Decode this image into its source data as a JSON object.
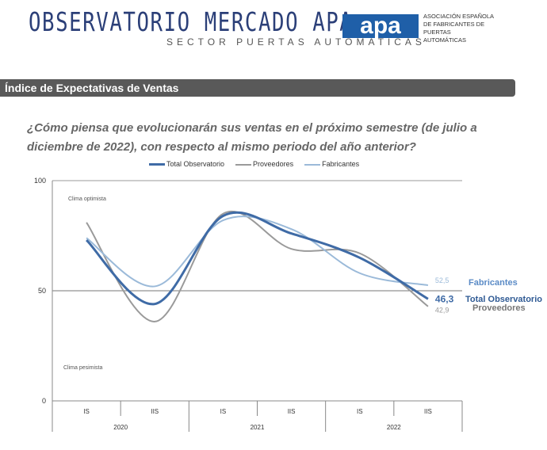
{
  "header": {
    "title": "OBSERVATORIO MERCADO APA",
    "subtitle": "SECTOR PUERTAS AUTOMATICAS",
    "logo_text": "apa",
    "org_name": "ASOCIACIÓN ESPAÑOLA DE FABRICANTES DE PUERTAS AUTOMÁTICAS"
  },
  "section_title": "Índice de Expectativas de Ventas",
  "question": "¿Cómo piensa que evolucionarán sus ventas en el próximo semestre (de julio a diciembre de 2022), con respecto al mismo periodo del año anterior?",
  "chart_data": {
    "type": "line",
    "categories": [
      "IS",
      "IIS",
      "IS",
      "IIS",
      "IS",
      "IIS"
    ],
    "years": [
      "2020",
      "2021",
      "2022"
    ],
    "ylim": [
      0,
      100
    ],
    "yticks": [
      "0",
      "50",
      "100"
    ],
    "annotations": {
      "top": "Clima optimista",
      "bottom": "Clima pesimista"
    },
    "legend_position": "top",
    "series": [
      {
        "name": "Total Observatorio",
        "color": "#3f6ba6",
        "values": [
          73,
          44,
          84,
          76,
          65,
          46.3
        ],
        "end_label": "46,3"
      },
      {
        "name": "Proveedores",
        "color": "#9a9a9a",
        "values": [
          81,
          36,
          85,
          69,
          67,
          42.9
        ],
        "end_label": "42,9"
      },
      {
        "name": "Fabricantes",
        "color": "#9bbad9",
        "values": [
          74,
          52,
          82,
          78,
          58,
          52.5
        ],
        "end_label": "52,5"
      }
    ]
  }
}
